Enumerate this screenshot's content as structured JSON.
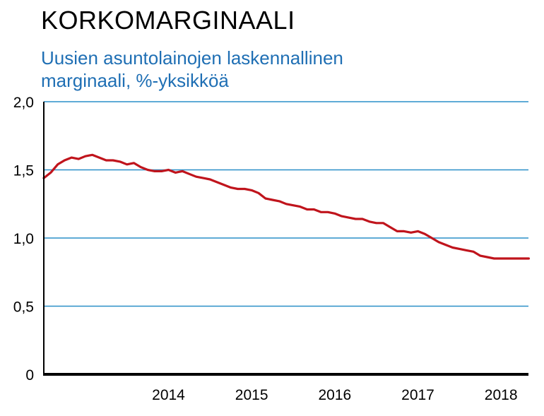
{
  "title": "KORKOMARGINAALI",
  "subtitle": "Uusien asuntolainojen laskennallinen marginaali, %-yksikköä",
  "chart_data": {
    "type": "line",
    "title": "KORKOMARGINAALI",
    "subtitle": "Uusien asuntolainojen laskennallinen marginaali, %-yksikköä",
    "xlim": [
      2013.0,
      2018.83
    ],
    "ylim": [
      0,
      2.0
    ],
    "y_ticks": [
      0,
      0.5,
      1.0,
      1.5,
      2.0
    ],
    "y_tick_labels": [
      "0",
      "0,5",
      "1,0",
      "1,5",
      "2,0"
    ],
    "x_ticks": [
      2014,
      2015,
      2016,
      2017,
      2018
    ],
    "x_tick_labels": [
      "2014",
      "2015",
      "2016",
      "2017",
      "2018"
    ],
    "grid": "horizontal",
    "colors": {
      "line": "#c0141c",
      "grid": "#2a8fc8",
      "axis": "#000000",
      "subtitle": "#1f6fb4"
    },
    "series": [
      {
        "x": [
          2013.0,
          2013.083,
          2013.167,
          2013.25,
          2013.333,
          2013.417,
          2013.5,
          2013.583,
          2013.667,
          2013.75,
          2013.833,
          2013.917,
          2014.0,
          2014.083,
          2014.167,
          2014.25,
          2014.333,
          2014.417,
          2014.5,
          2014.583,
          2014.667,
          2014.75,
          2014.833,
          2014.917,
          2015.0,
          2015.083,
          2015.167,
          2015.25,
          2015.333,
          2015.417,
          2015.5,
          2015.583,
          2015.667,
          2015.75,
          2015.833,
          2015.917,
          2016.0,
          2016.083,
          2016.167,
          2016.25,
          2016.333,
          2016.417,
          2016.5,
          2016.583,
          2016.667,
          2016.75,
          2016.833,
          2016.917,
          2017.0,
          2017.083,
          2017.167,
          2017.25,
          2017.333,
          2017.417,
          2017.5,
          2017.583,
          2017.667,
          2017.75,
          2017.833,
          2017.917,
          2018.0,
          2018.083,
          2018.167,
          2018.25,
          2018.333,
          2018.417,
          2018.5,
          2018.583,
          2018.667,
          2018.75,
          2018.833
        ],
        "y": [
          1.44,
          1.48,
          1.54,
          1.57,
          1.59,
          1.58,
          1.6,
          1.61,
          1.59,
          1.57,
          1.57,
          1.56,
          1.54,
          1.55,
          1.52,
          1.5,
          1.49,
          1.49,
          1.5,
          1.48,
          1.49,
          1.47,
          1.45,
          1.44,
          1.43,
          1.41,
          1.39,
          1.37,
          1.36,
          1.36,
          1.35,
          1.33,
          1.29,
          1.28,
          1.27,
          1.25,
          1.24,
          1.23,
          1.21,
          1.21,
          1.19,
          1.19,
          1.18,
          1.16,
          1.15,
          1.14,
          1.14,
          1.12,
          1.11,
          1.11,
          1.08,
          1.05,
          1.05,
          1.04,
          1.05,
          1.03,
          1.0,
          0.97,
          0.95,
          0.93,
          0.92,
          0.91,
          0.9,
          0.87,
          0.86,
          0.85,
          0.85,
          0.85,
          0.85,
          0.85,
          0.85
        ]
      }
    ]
  }
}
